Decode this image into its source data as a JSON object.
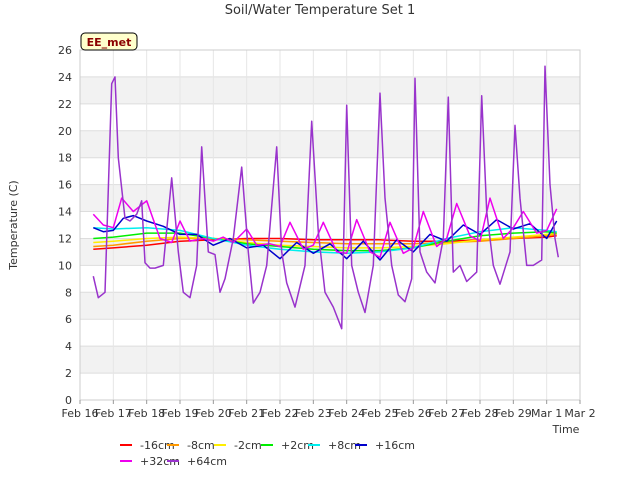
{
  "chart_data": {
    "type": "line",
    "title": "Soil/Water Temperature Set 1",
    "xlabel": "Time",
    "ylabel": "Temperature (C)",
    "site_badge": "EE_met",
    "xlim": [
      0,
      15
    ],
    "ylim": [
      0,
      26
    ],
    "x_ticks": [
      {
        "v": 0,
        "label": "Feb 16"
      },
      {
        "v": 1,
        "label": "Feb 17"
      },
      {
        "v": 2,
        "label": "Feb 18"
      },
      {
        "v": 3,
        "label": "Feb 19"
      },
      {
        "v": 4,
        "label": "Feb 20"
      },
      {
        "v": 5,
        "label": "Feb 21"
      },
      {
        "v": 6,
        "label": "Feb 22"
      },
      {
        "v": 7,
        "label": "Feb 23"
      },
      {
        "v": 8,
        "label": "Feb 24"
      },
      {
        "v": 9,
        "label": "Feb 25"
      },
      {
        "v": 10,
        "label": "Feb 26"
      },
      {
        "v": 11,
        "label": "Feb 27"
      },
      {
        "v": 12,
        "label": "Feb 28"
      },
      {
        "v": 13,
        "label": "Feb 29"
      },
      {
        "v": 14,
        "label": "Mar 1"
      },
      {
        "v": 15,
        "label": "Mar 2"
      }
    ],
    "y_ticks": [
      0,
      2,
      4,
      6,
      8,
      10,
      12,
      14,
      16,
      18,
      20,
      22,
      24,
      26
    ],
    "grid": true,
    "legend_position": "bottom",
    "series": [
      {
        "name": "-16cm",
        "color": "#ff0000",
        "x": [
          0.4,
          1,
          2,
          3,
          4,
          5,
          6,
          7,
          8,
          9,
          10,
          11,
          12,
          13,
          14,
          14.3
        ],
        "y": [
          11.2,
          11.3,
          11.5,
          11.8,
          11.9,
          12.0,
          12.0,
          11.9,
          11.9,
          11.9,
          11.8,
          11.8,
          11.9,
          12.0,
          12.1,
          12.2
        ]
      },
      {
        "name": "-8cm",
        "color": "#ff9900",
        "x": [
          0.4,
          1,
          2,
          3,
          4,
          5,
          6,
          7,
          8,
          9,
          10,
          11,
          12,
          13,
          14,
          14.3
        ],
        "y": [
          11.4,
          11.5,
          11.8,
          12.0,
          12.0,
          11.9,
          11.8,
          11.7,
          11.6,
          11.6,
          11.6,
          11.7,
          11.8,
          12.0,
          12.2,
          12.3
        ]
      },
      {
        "name": "-2cm",
        "color": "#ffee00",
        "x": [
          0.4,
          1,
          2,
          3,
          4,
          5,
          6,
          7,
          8,
          9,
          10,
          11,
          12,
          13,
          14,
          14.3
        ],
        "y": [
          11.7,
          11.8,
          12.0,
          12.1,
          12.0,
          11.7,
          11.5,
          11.4,
          11.3,
          11.3,
          11.4,
          11.6,
          11.9,
          12.1,
          12.3,
          12.4
        ]
      },
      {
        "name": "+2cm",
        "color": "#00ee00",
        "x": [
          0.4,
          1,
          2,
          3,
          4,
          5,
          6,
          7,
          8,
          9,
          10,
          11,
          12,
          13,
          14,
          14.3
        ],
        "y": [
          12.0,
          12.1,
          12.4,
          12.4,
          12.0,
          11.6,
          11.4,
          11.2,
          11.1,
          11.1,
          11.3,
          11.8,
          12.2,
          12.4,
          12.5,
          12.4
        ]
      },
      {
        "name": "+8cm",
        "color": "#00eeee",
        "x": [
          0.4,
          1,
          2,
          3,
          4,
          5,
          6,
          7,
          8,
          9,
          10,
          11,
          12,
          13,
          14,
          14.3
        ],
        "y": [
          12.8,
          12.7,
          12.8,
          12.6,
          12.0,
          11.5,
          11.2,
          11.0,
          10.9,
          11.0,
          11.3,
          12.0,
          12.5,
          12.8,
          12.6,
          12.5
        ]
      },
      {
        "name": "+16cm",
        "color": "#0000cc",
        "x": [
          0.4,
          0.7,
          1.0,
          1.3,
          1.6,
          2.0,
          2.5,
          3.0,
          3.5,
          4.0,
          4.5,
          5.0,
          5.5,
          6.0,
          6.5,
          7.0,
          7.5,
          8.0,
          8.5,
          9.0,
          9.5,
          10.0,
          10.5,
          11.0,
          11.5,
          12.0,
          12.5,
          13.0,
          13.5,
          14.0,
          14.3
        ],
        "y": [
          12.8,
          12.5,
          12.6,
          13.5,
          13.7,
          13.3,
          12.9,
          12.3,
          12.3,
          11.5,
          12.0,
          11.3,
          11.5,
          10.5,
          11.7,
          10.9,
          11.6,
          10.5,
          11.8,
          10.4,
          11.9,
          11.0,
          12.3,
          11.8,
          13.0,
          12.3,
          13.4,
          12.7,
          13.1,
          12.0,
          13.3
        ]
      },
      {
        "name": "+32cm",
        "color": "#ee00ee",
        "x": [
          0.4,
          0.7,
          1.0,
          1.25,
          1.6,
          2.0,
          2.4,
          2.75,
          3.0,
          3.3,
          3.7,
          4.0,
          4.3,
          4.6,
          5.0,
          5.3,
          5.7,
          6.0,
          6.3,
          6.7,
          7.0,
          7.3,
          7.7,
          8.0,
          8.3,
          8.7,
          9.0,
          9.3,
          9.7,
          10.0,
          10.3,
          10.7,
          11.0,
          11.3,
          11.7,
          12.0,
          12.3,
          12.7,
          13.0,
          13.3,
          13.7,
          14.0,
          14.3
        ],
        "y": [
          13.8,
          13.0,
          12.8,
          15.0,
          14.0,
          14.8,
          12.0,
          11.7,
          13.3,
          11.8,
          12.0,
          11.8,
          12.1,
          11.7,
          12.7,
          11.5,
          11.6,
          11.4,
          13.2,
          11.2,
          11.5,
          13.2,
          11.0,
          10.9,
          13.4,
          11.0,
          10.6,
          13.2,
          10.9,
          11.3,
          14.0,
          11.4,
          12.0,
          14.6,
          12.2,
          11.8,
          15.0,
          12.0,
          12.8,
          14.0,
          12.4,
          12.6,
          14.2
        ]
      },
      {
        "name": "+64cm",
        "color": "#9933cc",
        "x": [
          0.4,
          0.55,
          0.75,
          0.95,
          1.05,
          1.15,
          1.35,
          1.5,
          1.7,
          1.85,
          1.95,
          2.1,
          2.25,
          2.5,
          2.75,
          2.95,
          3.1,
          3.3,
          3.5,
          3.65,
          3.85,
          4.05,
          4.2,
          4.35,
          4.6,
          4.85,
          5.05,
          5.2,
          5.4,
          5.6,
          5.9,
          6.05,
          6.2,
          6.45,
          6.75,
          6.95,
          7.15,
          7.35,
          7.6,
          7.85,
          8.0,
          8.15,
          8.35,
          8.55,
          8.8,
          9.0,
          9.15,
          9.35,
          9.55,
          9.75,
          9.95,
          10.05,
          10.2,
          10.4,
          10.65,
          10.9,
          11.05,
          11.2,
          11.4,
          11.6,
          11.9,
          12.05,
          12.2,
          12.4,
          12.6,
          12.9,
          13.05,
          13.2,
          13.4,
          13.6,
          13.85,
          13.95,
          14.1,
          14.25,
          14.35
        ],
        "y": [
          9.2,
          7.6,
          8.0,
          23.5,
          24.0,
          18.0,
          13.5,
          13.3,
          13.8,
          14.8,
          10.2,
          9.8,
          9.8,
          10.0,
          16.5,
          11.0,
          8.0,
          7.6,
          10.0,
          18.8,
          11.0,
          10.8,
          8.0,
          9.0,
          12.0,
          17.3,
          11.0,
          7.2,
          8.0,
          10.0,
          18.8,
          11.0,
          8.7,
          6.9,
          10.0,
          20.7,
          12.5,
          8.0,
          6.9,
          5.3,
          21.9,
          10.0,
          8.0,
          6.5,
          10.0,
          22.8,
          15.0,
          10.0,
          7.8,
          7.3,
          9.0,
          23.9,
          11.0,
          9.5,
          8.7,
          12.0,
          22.5,
          9.5,
          10.0,
          8.8,
          9.5,
          22.6,
          14.0,
          10.0,
          8.6,
          11.0,
          20.4,
          15.0,
          10.0,
          10.0,
          10.4,
          24.8,
          16.0,
          12.0,
          10.6
        ]
      }
    ]
  }
}
